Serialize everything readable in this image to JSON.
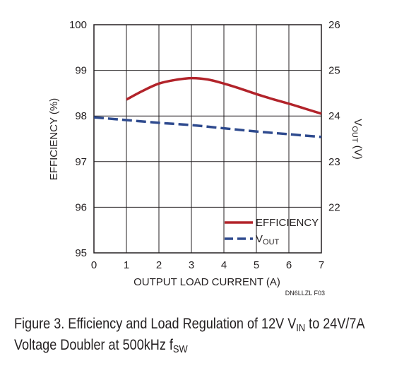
{
  "chart_data": {
    "type": "line",
    "xlabel": "OUTPUT LOAD CURRENT (A)",
    "ylabel": "EFFICIENCY (%)",
    "y2label": {
      "main": "V",
      "sub": "OUT",
      "rest": " (V)"
    },
    "xlim": [
      0,
      7
    ],
    "ylim": [
      95,
      100
    ],
    "y2lim": [
      21,
      26
    ],
    "x_ticks": [
      "0",
      "1",
      "2",
      "3",
      "4",
      "5",
      "6",
      "7"
    ],
    "y_ticks": [
      "95",
      "96",
      "97",
      "98",
      "99",
      "100"
    ],
    "y2_ticks": [
      "22",
      "23",
      "24",
      "25",
      "26"
    ],
    "grid": true,
    "legend_position": "bottom-right",
    "figure_id": "DN6LLZL F03",
    "series": [
      {
        "name": "EFFICIENCY",
        "axis": "left",
        "color": "#b2232a",
        "dash": "solid",
        "x": [
          1,
          1.5,
          2,
          2.5,
          3,
          3.5,
          4,
          4.5,
          5,
          5.5,
          6,
          6.5,
          7
        ],
        "y": [
          98.36,
          98.55,
          98.71,
          98.79,
          98.83,
          98.8,
          98.71,
          98.6,
          98.48,
          98.37,
          98.27,
          98.16,
          98.05
        ]
      },
      {
        "name_main": "V",
        "name_sub": "OUT",
        "axis": "right",
        "color": "#2e4a8e",
        "dash": "dashed",
        "x": [
          0,
          1,
          2,
          3,
          4,
          5,
          6,
          7
        ],
        "y": [
          23.97,
          23.91,
          23.85,
          23.8,
          23.73,
          23.66,
          23.6,
          23.54
        ]
      }
    ]
  },
  "caption": {
    "line1_a": "Figure 3. Efficiency and Load Regulation of 12V V",
    "line1_sub1": "IN",
    "line1_b": " to 24V/7A",
    "line2_a": "Voltage Doubler at 500kHz f",
    "line2_sub": "SW"
  }
}
